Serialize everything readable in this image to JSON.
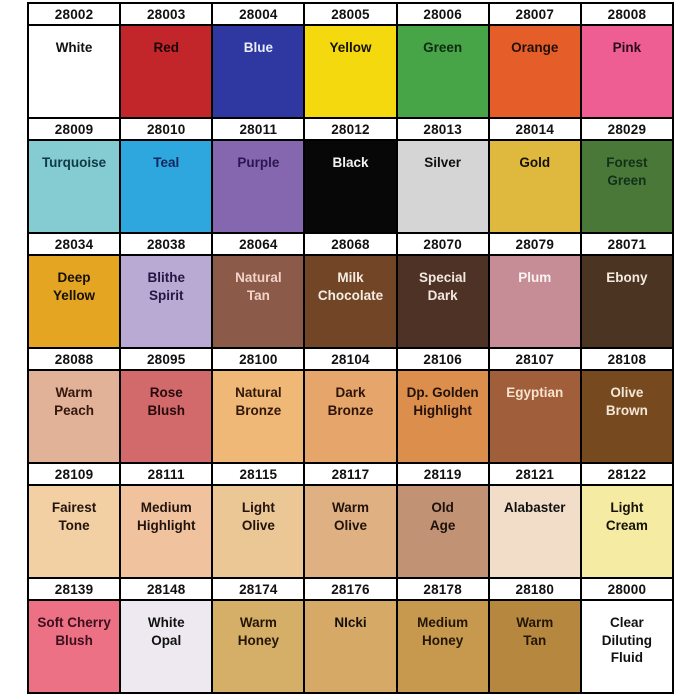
{
  "page": {
    "background": "#ffffff",
    "grid_line_color": "#000000",
    "header_bg": "#ffffff",
    "header_text_color": "#111111"
  },
  "chart_data": {
    "type": "table",
    "title": "Paint color chart: product codes with color-name swatches",
    "columns": 7,
    "grid": "7 columns x 6 blocks; each block = code header row + color swatch row",
    "rows": [
      [
        {
          "code": "28002",
          "name": "White",
          "bg": "#ffffff",
          "text": "#111111"
        },
        {
          "code": "28003",
          "name": "Red",
          "bg": "#c2262b",
          "text": "#1c0708"
        },
        {
          "code": "28004",
          "name": "Blue",
          "bg": "#2f37a0",
          "text": "#e9edf9"
        },
        {
          "code": "28005",
          "name": "Yellow",
          "bg": "#f5d90f",
          "text": "#161306"
        },
        {
          "code": "28006",
          "name": "Green",
          "bg": "#47a447",
          "text": "#0d2b10"
        },
        {
          "code": "28007",
          "name": "Orange",
          "bg": "#e55d28",
          "text": "#23100a"
        },
        {
          "code": "28008",
          "name": "Pink",
          "bg": "#ee5e92",
          "text": "#2a0d18"
        }
      ],
      [
        {
          "code": "28009",
          "name": "Turquoise",
          "bg": "#84cbd2",
          "text": "#0f3a46"
        },
        {
          "code": "28010",
          "name": "Teal",
          "bg": "#2ea7de",
          "text": "#13265e"
        },
        {
          "code": "28011",
          "name": "Purple",
          "bg": "#8567b0",
          "text": "#2a1650"
        },
        {
          "code": "28012",
          "name": "Black",
          "bg": "#070707",
          "text": "#f2f2f2"
        },
        {
          "code": "28013",
          "name": "Silver",
          "bg": "#d5d5d5",
          "text": "#111111"
        },
        {
          "code": "28014",
          "name": "Gold",
          "bg": "#dfb93e",
          "text": "#161006"
        },
        {
          "code": "28029",
          "name": "Forest\nGreen",
          "bg": "#4a7839",
          "text": "#12301a"
        }
      ],
      [
        {
          "code": "28034",
          "name": "Deep\nYellow",
          "bg": "#e4a523",
          "text": "#161006"
        },
        {
          "code": "28038",
          "name": "Blithe\nSpirit",
          "bg": "#b8aad3",
          "text": "#241744"
        },
        {
          "code": "28064",
          "name": "Natural\nTan",
          "bg": "#8b5a48",
          "text": "#f3d2ca"
        },
        {
          "code": "28068",
          "name": "Milk\nChocolate",
          "bg": "#714526",
          "text": "#f5ede4"
        },
        {
          "code": "28070",
          "name": "Special\nDark",
          "bg": "#4f3226",
          "text": "#f1e8e0"
        },
        {
          "code": "28079",
          "name": "Plum",
          "bg": "#c78d97",
          "text": "#faf3f2"
        },
        {
          "code": "28071",
          "name": "Ebony",
          "bg": "#4c3422",
          "text": "#f2eadf"
        }
      ],
      [
        {
          "code": "28088",
          "name": "Warm\nPeach",
          "bg": "#e1b198",
          "text": "#33170d"
        },
        {
          "code": "28095",
          "name": "Rose\nBlush",
          "bg": "#d26a6c",
          "text": "#28090c"
        },
        {
          "code": "28100",
          "name": "Natural\nBronze",
          "bg": "#f0b877",
          "text": "#33180a"
        },
        {
          "code": "28104",
          "name": "Dark\nBronze",
          "bg": "#e6a56b",
          "text": "#2e1408"
        },
        {
          "code": "28106",
          "name": "Dp. Golden\nHighlight",
          "bg": "#dc8e4c",
          "text": "#23110b"
        },
        {
          "code": "28107",
          "name": "Egyptian",
          "bg": "#a05e3a",
          "text": "#f6e3cc"
        },
        {
          "code": "28108",
          "name": "Olive\nBrown",
          "bg": "#77491f",
          "text": "#f3e8d8"
        }
      ],
      [
        {
          "code": "28109",
          "name": "Fairest\nTone",
          "bg": "#f3d0a4",
          "text": "#22130c"
        },
        {
          "code": "28111",
          "name": "Medium\nHighlight",
          "bg": "#f0c39e",
          "text": "#22130c"
        },
        {
          "code": "28115",
          "name": "Light\nOlive",
          "bg": "#eac795",
          "text": "#22130c"
        },
        {
          "code": "28117",
          "name": "Warm\nOlive",
          "bg": "#dfb182",
          "text": "#22130c"
        },
        {
          "code": "28119",
          "name": "Old\nAge",
          "bg": "#c19274",
          "text": "#1d120b"
        },
        {
          "code": "28121",
          "name": "Alabaster",
          "bg": "#f2dec8",
          "text": "#111111"
        },
        {
          "code": "28122",
          "name": "Light\nCream",
          "bg": "#f5eba3",
          "text": "#161306"
        }
      ],
      [
        {
          "code": "28139",
          "name": "Soft Cherry\nBlush",
          "bg": "#ed7185",
          "text": "#3c0f1c"
        },
        {
          "code": "28148",
          "name": "White\nOpal",
          "bg": "#eee9f1",
          "text": "#111111"
        },
        {
          "code": "28174",
          "name": "Warm\nHoney",
          "bg": "#d5af68",
          "text": "#241505"
        },
        {
          "code": "28176",
          "name": "NIcki",
          "bg": "#d6a967",
          "text": "#15100a"
        },
        {
          "code": "28178",
          "name": "Medium\nHoney",
          "bg": "#c6994f",
          "text": "#241505"
        },
        {
          "code": "28180",
          "name": "Warm\nTan",
          "bg": "#b6883f",
          "text": "#241505"
        },
        {
          "code": "28000",
          "name": "Clear\nDiluting\nFluid",
          "bg": "#ffffff",
          "text": "#111111"
        }
      ]
    ]
  }
}
